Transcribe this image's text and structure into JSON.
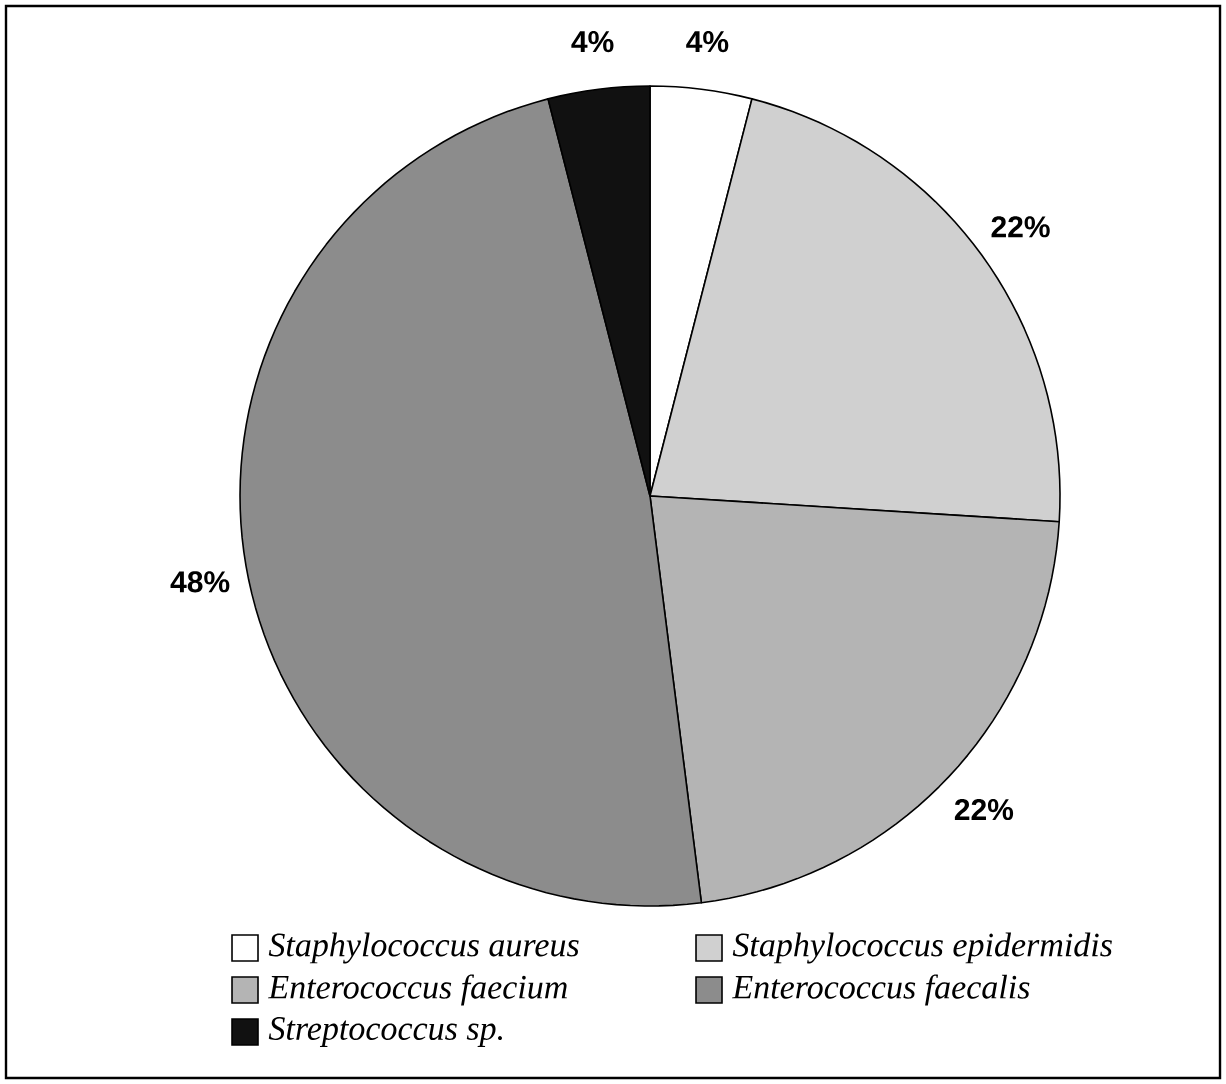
{
  "chart_data": {
    "type": "pie",
    "categories": [
      "Staphylococcus aureus",
      "Staphylococcus epidermidis",
      "Enterococcus faecium",
      "Enterococcus faecalis",
      "Streptococcus sp."
    ],
    "values": [
      4,
      22,
      22,
      48,
      4
    ],
    "value_labels": [
      "4%",
      "22%",
      "22%",
      "48%",
      "4%"
    ],
    "colors": [
      "#ffffff",
      "#d0d0d0",
      "#b4b4b4",
      "#8c8c8c",
      "#111111"
    ],
    "legend": "bottom"
  }
}
